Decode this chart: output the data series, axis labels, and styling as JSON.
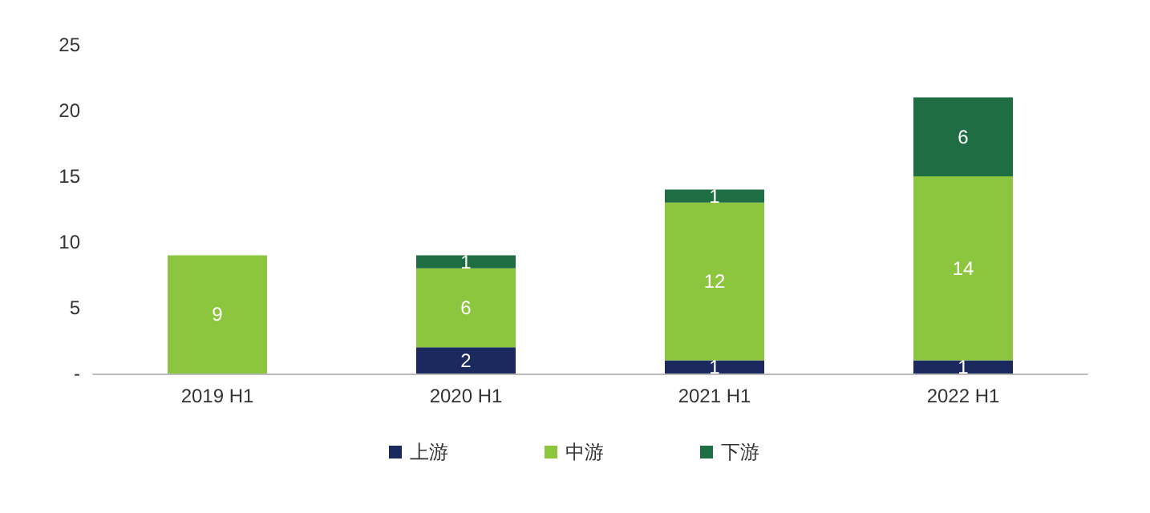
{
  "chart_data": {
    "type": "bar",
    "stacked": true,
    "categories": [
      "2019 H1",
      "2020 H1",
      "2021 H1",
      "2022 H1"
    ],
    "series": [
      {
        "name": "上游",
        "color": "#1b2a5e",
        "values": [
          null,
          2,
          1,
          1
        ]
      },
      {
        "name": "中游",
        "color": "#8cc63f",
        "values": [
          9,
          6,
          12,
          14
        ]
      },
      {
        "name": "下游",
        "color": "#1f6e43",
        "values": [
          null,
          1,
          1,
          6
        ]
      }
    ],
    "ylim": [
      0,
      25
    ],
    "yticks": [
      {
        "value": 0,
        "label": "-"
      },
      5,
      10,
      15,
      20,
      25
    ],
    "grid": false,
    "legend": "bottom",
    "data_labels": true
  }
}
